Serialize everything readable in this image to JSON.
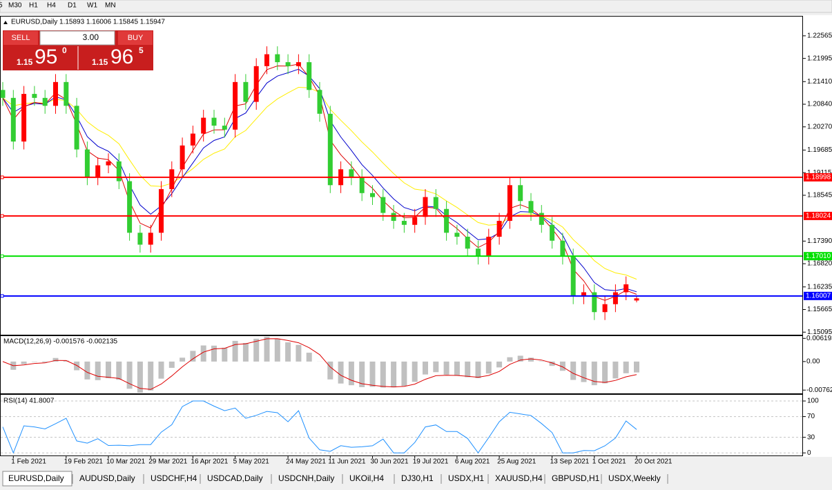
{
  "toolbar": [
    "5",
    "M30",
    "H1",
    "H4",
    "D1",
    "W1",
    "MN"
  ],
  "trade_panel": {
    "sell": "SELL",
    "buy": "BUY",
    "lots": "3.00",
    "bid_big": "1.15",
    "bid_main": "95",
    "bid_small": "0",
    "ask_big": "1.15",
    "ask_main": "96",
    "ask_small": "5"
  },
  "tabs": [
    "EURUSD,Daily",
    "AUDUSD,Daily",
    "USDCHF,H4",
    "USDCAD,Daily",
    "USDCNH,Daily",
    "UKOil,H4",
    "DJ30,H1",
    "USDX,H1",
    "XAUUSD,H4",
    "GBPUSD,H1",
    "USDX,Weekly"
  ],
  "chart_data": [
    {
      "type": "candlestick",
      "title": "EURUSD,Daily  1.15893 1.16006 1.15845 1.15947",
      "up_color": "#ff0000",
      "down_color": "#32cd32",
      "categories": [
        null,
        "1 Feb 2021",
        null,
        null,
        null,
        null,
        "19 Feb 2021",
        null,
        null,
        null,
        "10 Mar 2021",
        null,
        null,
        null,
        "29 Mar 2021",
        null,
        null,
        null,
        "16 Apr 2021",
        null,
        null,
        null,
        "5 May 2021",
        null,
        null,
        null,
        null,
        "24 May 2021",
        null,
        null,
        null,
        "11 Jun 2021",
        null,
        null,
        null,
        "30 Jun 2021",
        null,
        null,
        null,
        "19 Jul 2021",
        null,
        null,
        null,
        "6 Aug 2021",
        null,
        null,
        null,
        "25 Aug 2021",
        null,
        null,
        null,
        null,
        "13 Sep 2021",
        null,
        null,
        null,
        "1 Oct 2021",
        null,
        null,
        null,
        "20 Oct 2021"
      ],
      "open": [
        1.212,
        1.21,
        1.199,
        1.211,
        1.21,
        1.208,
        1.214,
        1.208,
        1.197,
        1.19,
        1.193,
        1.194,
        1.189,
        1.176,
        1.173,
        1.176,
        1.187,
        1.192,
        1.198,
        1.201,
        1.205,
        1.203,
        1.202,
        1.214,
        1.209,
        1.218,
        1.221,
        1.219,
        1.218,
        1.219,
        1.212,
        1.206,
        1.188,
        1.192,
        1.19,
        1.186,
        1.185,
        1.181,
        1.179,
        1.178,
        1.18,
        1.185,
        1.182,
        1.176,
        1.175,
        1.172,
        1.17,
        1.175,
        1.179,
        1.188,
        1.184,
        1.181,
        1.178,
        1.174,
        1.17,
        1.16,
        1.161,
        1.156,
        1.158,
        1.161,
        1.15893
      ],
      "high": [
        1.214,
        1.212,
        1.213,
        1.213,
        1.212,
        1.216,
        1.216,
        1.21,
        1.199,
        1.195,
        1.196,
        1.196,
        1.191,
        1.178,
        1.178,
        1.189,
        1.194,
        1.2,
        1.203,
        1.207,
        1.207,
        1.205,
        1.216,
        1.216,
        1.22,
        1.223,
        1.223,
        1.221,
        1.221,
        1.221,
        1.214,
        1.208,
        1.194,
        1.194,
        1.192,
        1.188,
        1.187,
        1.183,
        1.181,
        1.182,
        1.187,
        1.187,
        1.184,
        1.178,
        1.177,
        1.174,
        1.177,
        1.181,
        1.19,
        1.19,
        1.186,
        1.183,
        1.18,
        1.176,
        1.172,
        1.163,
        1.163,
        1.16,
        1.163,
        1.165,
        1.16006
      ],
      "low": [
        1.208,
        1.197,
        1.197,
        1.208,
        1.206,
        1.206,
        1.206,
        1.195,
        1.188,
        1.188,
        1.191,
        1.187,
        1.174,
        1.171,
        1.171,
        1.174,
        1.185,
        1.19,
        1.196,
        1.199,
        1.201,
        1.2,
        1.2,
        1.207,
        1.207,
        1.216,
        1.217,
        1.216,
        1.216,
        1.21,
        1.204,
        1.186,
        1.186,
        1.188,
        1.184,
        1.183,
        1.179,
        1.177,
        1.176,
        1.176,
        1.178,
        1.18,
        1.174,
        1.173,
        1.17,
        1.168,
        1.168,
        1.173,
        1.177,
        1.182,
        1.179,
        1.176,
        1.172,
        1.168,
        1.158,
        1.158,
        1.154,
        1.154,
        1.156,
        1.159,
        1.15845
      ],
      "close": [
        1.21,
        1.199,
        1.211,
        1.21,
        1.208,
        1.214,
        1.208,
        1.197,
        1.19,
        1.193,
        1.194,
        1.189,
        1.176,
        1.173,
        1.176,
        1.187,
        1.192,
        1.198,
        1.201,
        1.205,
        1.203,
        1.202,
        1.214,
        1.209,
        1.218,
        1.221,
        1.219,
        1.218,
        1.219,
        1.212,
        1.206,
        1.188,
        1.192,
        1.19,
        1.186,
        1.185,
        1.181,
        1.179,
        1.178,
        1.18,
        1.185,
        1.182,
        1.176,
        1.175,
        1.172,
        1.17,
        1.175,
        1.179,
        1.188,
        1.184,
        1.181,
        1.178,
        1.174,
        1.17,
        1.16,
        1.161,
        1.156,
        1.158,
        1.161,
        1.163,
        1.15947
      ],
      "ylim": [
        1.1503,
        1.2305
      ],
      "yticks": [
        1.22565,
        1.21995,
        {
          "value": 1.2141,
          "label": "1.21410"
        },
        {
          "value": 1.2084,
          "label": "1.20840"
        },
        {
          "value": 1.2027,
          "label": "1.20270"
        },
        1.19685,
        1.19115,
        1.18545,
        {
          "value": 1.1739,
          "label": "1.17390"
        },
        {
          "value": 1.1682,
          "label": "1.16820"
        },
        1.16235,
        1.15665,
        1.15095
      ],
      "levels": [
        {
          "value": 1.18998,
          "color": "#ff0000"
        },
        {
          "value": 1.18024,
          "color": "#ff0000"
        },
        {
          "value": 1.1701,
          "label": "1.17010",
          "color": "#00e000"
        },
        {
          "value": 1.16007,
          "color": "#0000ff"
        }
      ]
    },
    {
      "type": "macd",
      "title": "MACD(12,26,9) -0.001576 -0.002135",
      "ylim": [
        -0.0085,
        0.0068
      ],
      "yticks": [
        0.006193,
        {
          "value": 0,
          "label": "0.00"
        },
        -0.007621
      ]
    },
    {
      "type": "rsi",
      "title": "RSI(14) 41.8007",
      "ylim": [
        -5,
        112
      ],
      "yticks": [
        100,
        70,
        30,
        0
      ]
    }
  ]
}
